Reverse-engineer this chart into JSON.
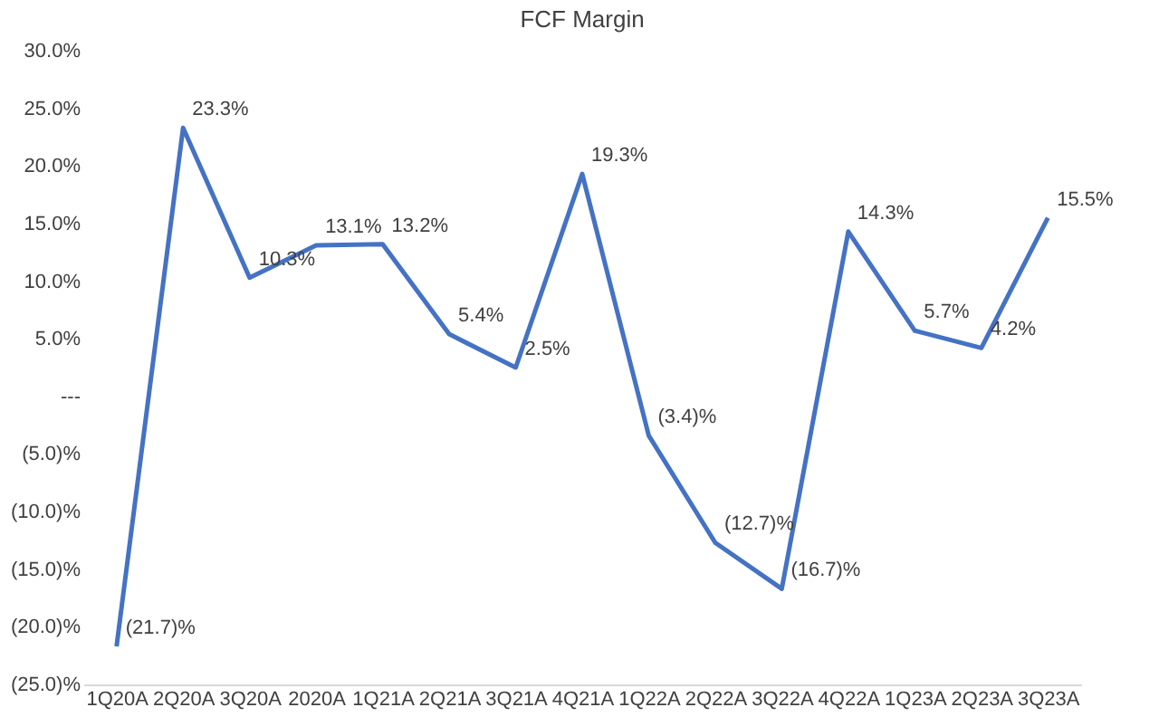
{
  "chart_data": {
    "type": "line",
    "title": "FCF Margin",
    "categories": [
      "1Q20A",
      "2Q20A",
      "3Q20A",
      "2020A",
      "1Q21A",
      "2Q21A",
      "3Q21A",
      "4Q21A",
      "1Q22A",
      "2Q22A",
      "3Q22A",
      "4Q22A",
      "1Q23A",
      "2Q23A",
      "3Q23A"
    ],
    "series": [
      {
        "color": "#4472c4",
        "values": [
          -21.7,
          23.3,
          10.3,
          13.1,
          13.2,
          5.4,
          2.5,
          19.3,
          -3.4,
          -12.7,
          -16.7,
          14.3,
          5.7,
          4.2,
          15.5
        ],
        "value_labels": [
          "(21.7)%",
          "23.3%",
          "10.3%",
          "13.1%",
          "13.2%",
          "5.4%",
          "2.5%",
          "19.3%",
          "(3.4)%",
          "(12.7)%",
          "(16.7)%",
          "14.3%",
          "5.7%",
          "4.2%",
          "15.5%"
        ]
      }
    ],
    "ylim": [
      -25,
      30
    ],
    "yticks": [
      {
        "value": -25,
        "label": "(25.0)%"
      },
      {
        "value": -20,
        "label": "(20.0)%"
      },
      {
        "value": -15,
        "label": "(15.0)%"
      },
      {
        "value": -10,
        "label": "(10.0)%"
      },
      {
        "value": -5,
        "label": "(5.0)%"
      },
      {
        "value": 0,
        "label": "---"
      },
      {
        "value": 5,
        "label": "5.0%"
      },
      {
        "value": 10,
        "label": "10.0%"
      },
      {
        "value": 15,
        "label": "15.0%"
      },
      {
        "value": 20,
        "label": "20.0%"
      },
      {
        "value": 25,
        "label": "25.0%"
      },
      {
        "value": 30,
        "label": "30.0%"
      }
    ],
    "grid": false,
    "marker": "none",
    "line_style": "solid"
  }
}
